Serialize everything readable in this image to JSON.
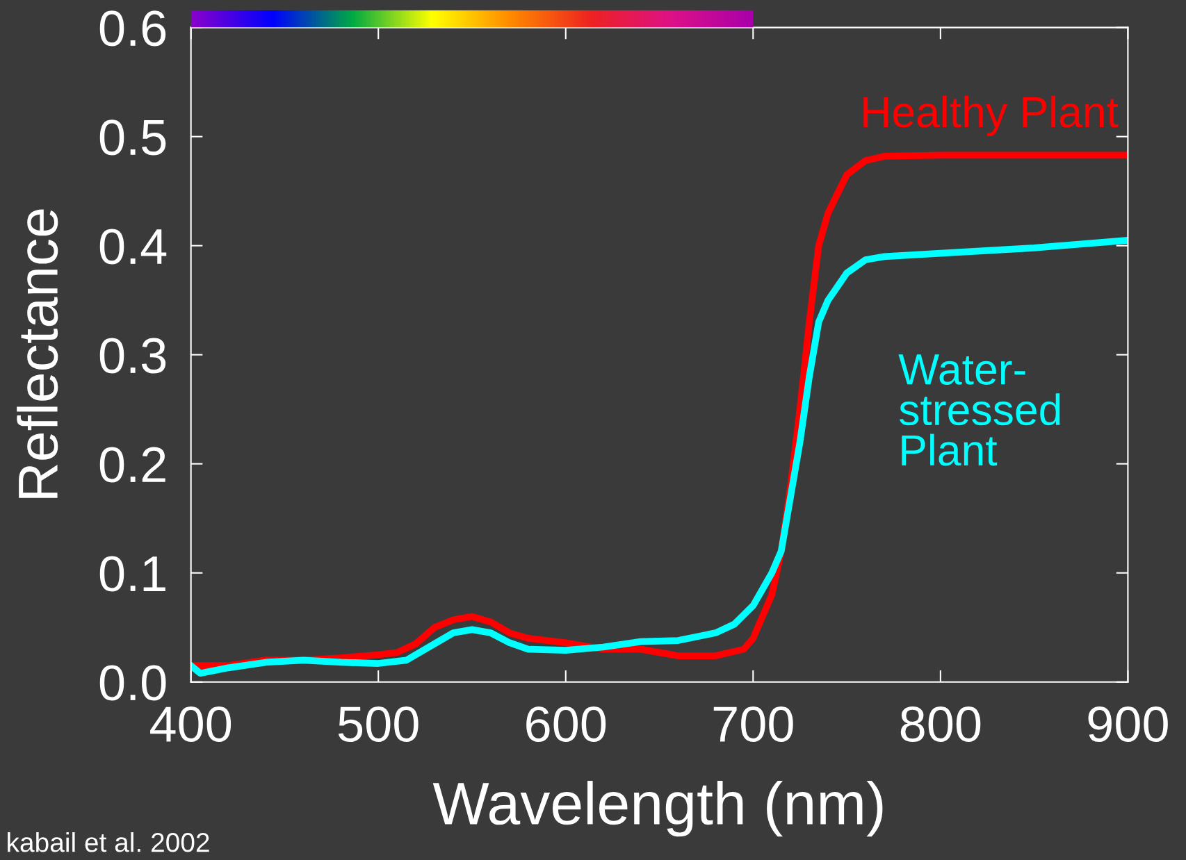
{
  "chart_data": {
    "type": "line",
    "xlabel": "Wavelength (nm)",
    "ylabel": "Reflectance",
    "xlim": [
      400,
      900
    ],
    "xticks": [
      400,
      500,
      600,
      700,
      800,
      900
    ],
    "ylim": [
      0,
      0.6
    ],
    "yticks": [
      {
        "value": 0,
        "label": "0.0"
      },
      0.1,
      0.2,
      0.3,
      0.4,
      0.5,
      0.6
    ],
    "grid": false,
    "legend": false,
    "marker": "none",
    "line_style": "solid",
    "annotations": [
      "kabail et al. 2002"
    ],
    "series": [
      {
        "name": "Healthy Plant",
        "color": "#ff0000",
        "x": [
          400,
          420,
          440,
          460,
          480,
          500,
          510,
          520,
          530,
          540,
          550,
          560,
          570,
          580,
          600,
          620,
          640,
          660,
          680,
          695,
          700,
          710,
          715,
          720,
          725,
          730,
          735,
          740,
          750,
          760,
          770,
          800,
          850,
          900
        ],
        "values": [
          0.015,
          0.015,
          0.02,
          0.02,
          0.022,
          0.025,
          0.027,
          0.035,
          0.05,
          0.057,
          0.06,
          0.055,
          0.045,
          0.04,
          0.036,
          0.03,
          0.03,
          0.024,
          0.024,
          0.03,
          0.04,
          0.08,
          0.12,
          0.18,
          0.25,
          0.33,
          0.4,
          0.43,
          0.465,
          0.478,
          0.482,
          0.483,
          0.483,
          0.483
        ]
      },
      {
        "name": "Water-\nstressed\nPlant",
        "color": "#00ffff",
        "x": [
          400,
          405,
          420,
          440,
          460,
          480,
          500,
          515,
          530,
          540,
          550,
          560,
          570,
          580,
          600,
          620,
          640,
          660,
          680,
          690,
          700,
          710,
          715,
          720,
          725,
          730,
          735,
          740,
          750,
          760,
          770,
          800,
          850,
          900
        ],
        "values": [
          0.015,
          0.008,
          0.013,
          0.018,
          0.02,
          0.018,
          0.017,
          0.02,
          0.035,
          0.045,
          0.048,
          0.045,
          0.036,
          0.03,
          0.029,
          0.032,
          0.037,
          0.038,
          0.045,
          0.053,
          0.07,
          0.1,
          0.12,
          0.17,
          0.22,
          0.28,
          0.33,
          0.35,
          0.375,
          0.387,
          0.39,
          0.393,
          0.398,
          0.405
        ]
      }
    ]
  }
}
